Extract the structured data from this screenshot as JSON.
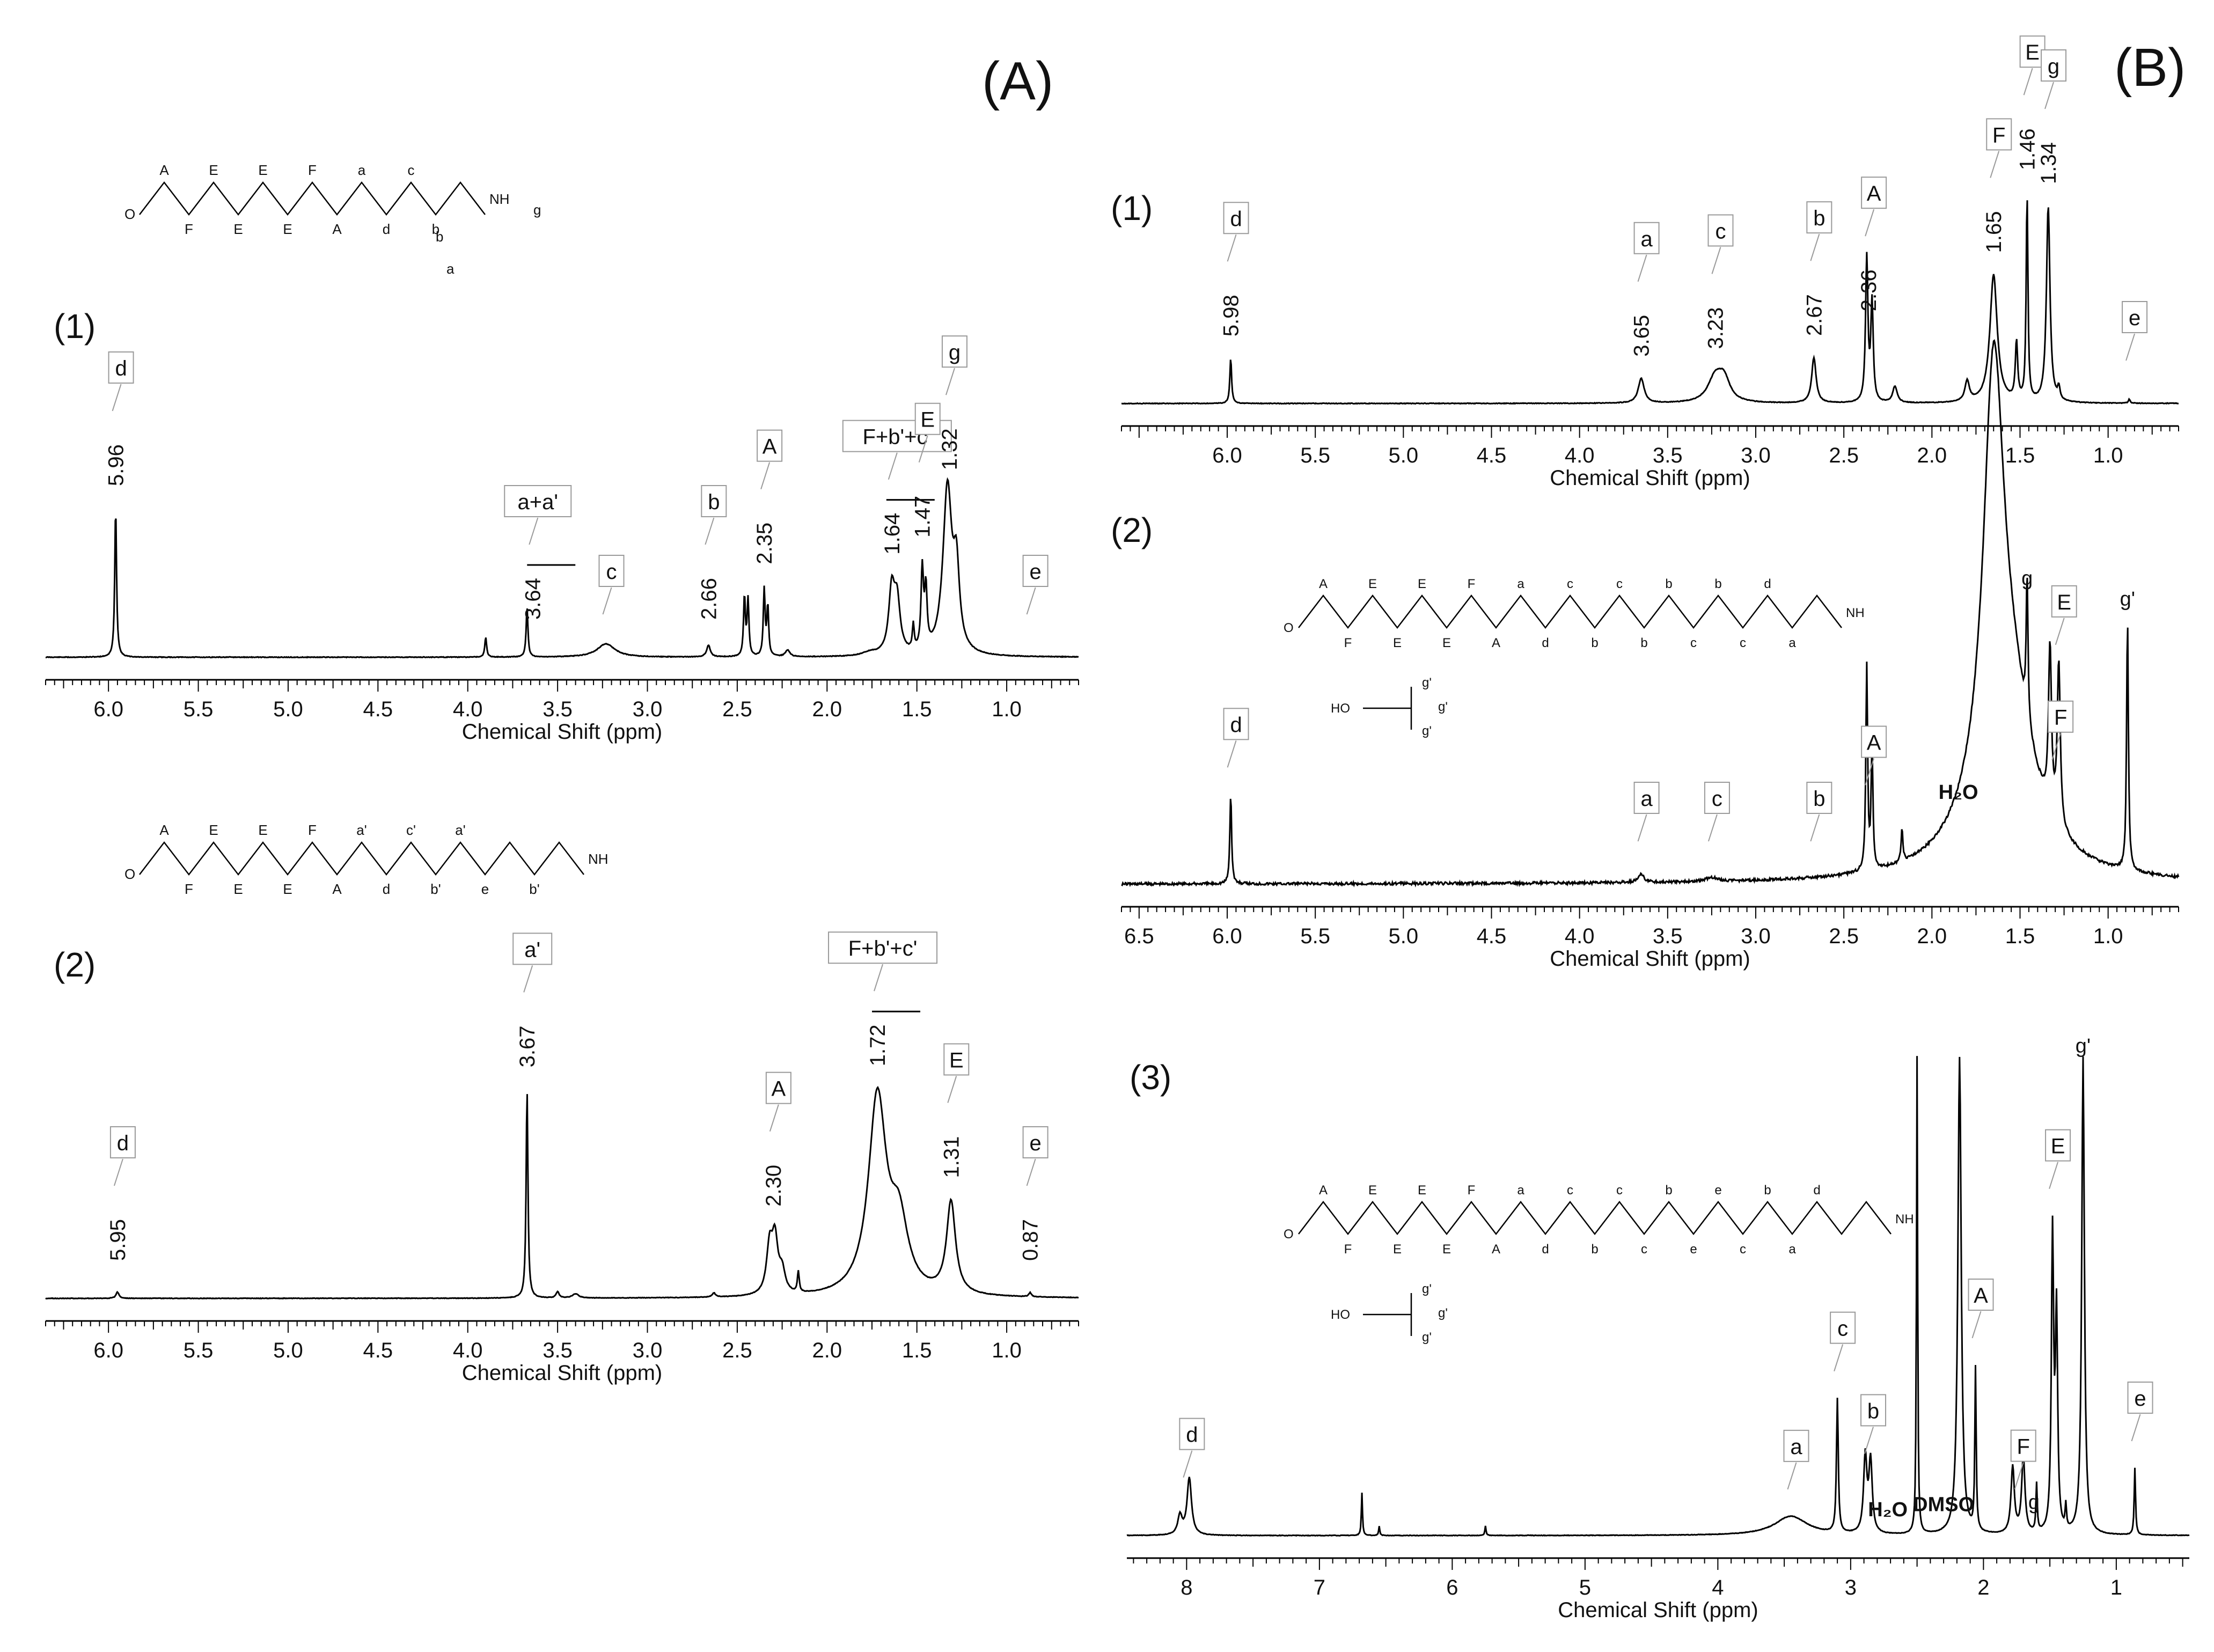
{
  "panels": {
    "A": "(A)",
    "B": "(B)"
  },
  "colors": {
    "ink": "#111111",
    "red": "#e8201a",
    "blue": "#2a4dd6",
    "brown": "#9a5a1a",
    "tag": "#9a9a9a"
  },
  "chart_data": [
    {
      "id": "A1",
      "type": "line",
      "label": "(1)",
      "xlabel": "Chemical Shift (ppm)",
      "xlim": [
        6.35,
        0.6
      ],
      "ticks": [
        "6.0",
        "5.5",
        "5.0",
        "4.5",
        "4.0",
        "3.5",
        "3.0",
        "2.5",
        "2.0",
        "1.5",
        "1.0"
      ],
      "tick_values": [
        6.0,
        5.5,
        5.0,
        4.5,
        4.0,
        3.5,
        3.0,
        2.5,
        2.0,
        1.5,
        1.0
      ],
      "peaks": [
        [
          5.96,
          0.9,
          0.006
        ],
        [
          3.9,
          0.12,
          0.006
        ],
        [
          3.67,
          0.3,
          0.006
        ],
        [
          3.23,
          0.08,
          0.06
        ],
        [
          2.66,
          0.07,
          0.012
        ],
        [
          2.46,
          0.36,
          0.006
        ],
        [
          2.44,
          0.34,
          0.006
        ],
        [
          2.35,
          0.4,
          0.006
        ],
        [
          2.33,
          0.3,
          0.006
        ],
        [
          2.22,
          0.04,
          0.015
        ],
        [
          1.76,
          0.02,
          0.05
        ],
        [
          1.64,
          0.38,
          0.02
        ],
        [
          1.61,
          0.3,
          0.02
        ],
        [
          1.52,
          0.15,
          0.006
        ],
        [
          1.47,
          0.48,
          0.008
        ],
        [
          1.45,
          0.35,
          0.008
        ],
        [
          1.33,
          1.0,
          0.03
        ],
        [
          1.28,
          0.45,
          0.02
        ]
      ],
      "labels": [
        {
          "ppm": 5.96,
          "text": "5.96",
          "tag": "d",
          "bar": false
        },
        {
          "ppm": 3.64,
          "text": "3.64",
          "tag": "a+a'",
          "bar": true
        },
        {
          "ppm": 3.23,
          "text": "",
          "tag": "c",
          "bar": false
        },
        {
          "ppm": 2.66,
          "text": "2.66",
          "tag": "b",
          "bar": false
        },
        {
          "ppm": 2.35,
          "text": "2.35",
          "tag": "A",
          "bar": false
        },
        {
          "ppm": 1.64,
          "text": "1.64",
          "tag": "F+b'+c'",
          "bar": true
        },
        {
          "ppm": 1.47,
          "text": "1.47",
          "tag": "E",
          "bar": false
        },
        {
          "ppm": 1.32,
          "text": "1.32",
          "tag": "g",
          "bar": false
        },
        {
          "ppm": 0.87,
          "text": "",
          "tag": "e",
          "bar": false
        }
      ],
      "formula": {
        "top": [
          "A",
          "E",
          "E",
          "F",
          "a",
          "c"
        ],
        "bottom": [
          "F",
          "E",
          "E",
          "A",
          "d",
          "b"
        ],
        "branch": [
          "b",
          "a"
        ],
        "tail": "g"
      }
    },
    {
      "id": "A2",
      "type": "line",
      "label": "(2)",
      "xlabel": "Chemical Shift (ppm)",
      "xlim": [
        6.35,
        0.6
      ],
      "ticks": [
        "6.0",
        "5.5",
        "5.0",
        "4.5",
        "4.0",
        "3.5",
        "3.0",
        "2.5",
        "2.0",
        "1.5",
        "1.0"
      ],
      "tick_values": [
        6.0,
        5.5,
        5.0,
        4.5,
        4.0,
        3.5,
        3.0,
        2.5,
        2.0,
        1.5,
        1.0
      ],
      "peaks": [
        [
          5.95,
          0.03,
          0.01
        ],
        [
          3.67,
          1.0,
          0.006
        ],
        [
          3.5,
          0.03,
          0.01
        ],
        [
          3.4,
          0.02,
          0.02
        ],
        [
          2.63,
          0.02,
          0.01
        ],
        [
          2.32,
          0.22,
          0.02
        ],
        [
          2.29,
          0.25,
          0.02
        ],
        [
          2.25,
          0.1,
          0.02
        ],
        [
          2.16,
          0.1,
          0.006
        ],
        [
          1.72,
          0.94,
          0.06
        ],
        [
          1.6,
          0.32,
          0.06
        ],
        [
          1.31,
          0.44,
          0.03
        ],
        [
          0.87,
          0.02,
          0.008
        ]
      ],
      "labels": [
        {
          "ppm": 5.95,
          "text": "5.95",
          "tag": "d",
          "bar": false
        },
        {
          "ppm": 3.67,
          "text": "3.67",
          "tag": "a'",
          "bar": false
        },
        {
          "ppm": 2.3,
          "text": "2.30",
          "tag": "A",
          "bar": false
        },
        {
          "ppm": 1.72,
          "text": "1.72",
          "tag": "F+b'+c'",
          "bar": true
        },
        {
          "ppm": 1.31,
          "text": "1.31",
          "tag": "E",
          "bar": false
        },
        {
          "ppm": 0.87,
          "text": "0.87",
          "tag": "e",
          "bar": false
        }
      ],
      "formula": {
        "top": [
          "A",
          "E",
          "E",
          "F",
          "a'",
          "c'",
          "a'"
        ],
        "bottom": [
          "F",
          "E",
          "E",
          "A",
          "d",
          "b'",
          "e",
          "b'"
        ]
      }
    },
    {
      "id": "B1",
      "type": "line",
      "label": "(1)",
      "xlabel": "Chemical Shift (ppm)",
      "xlim": [
        6.6,
        0.6
      ],
      "ticks": [
        "6.0",
        "5.5",
        "5.0",
        "4.5",
        "4.0",
        "3.5",
        "3.0",
        "2.5",
        "2.0",
        "1.5",
        "1.0"
      ],
      "tick_values": [
        6.0,
        5.5,
        5.0,
        4.5,
        4.0,
        3.5,
        3.0,
        2.5,
        2.0,
        1.5,
        1.0
      ],
      "peaks": [
        [
          5.98,
          0.22,
          0.006
        ],
        [
          3.65,
          0.12,
          0.02
        ],
        [
          3.23,
          0.12,
          0.05
        ],
        [
          3.18,
          0.1,
          0.04
        ],
        [
          2.67,
          0.22,
          0.015
        ],
        [
          2.37,
          0.7,
          0.008
        ],
        [
          2.34,
          0.48,
          0.008
        ],
        [
          2.21,
          0.08,
          0.015
        ],
        [
          1.8,
          0.1,
          0.015
        ],
        [
          1.65,
          0.62,
          0.025
        ],
        [
          1.52,
          0.28,
          0.008
        ],
        [
          1.46,
          1.0,
          0.006
        ],
        [
          1.34,
          0.95,
          0.012
        ],
        [
          1.28,
          0.06,
          0.008
        ],
        [
          0.88,
          0.02,
          0.006
        ]
      ],
      "labels": [
        {
          "ppm": 5.98,
          "text": "5.98",
          "tag": "d",
          "bar": false
        },
        {
          "ppm": 3.65,
          "text": "3.65",
          "tag": "a",
          "bar": false
        },
        {
          "ppm": 3.23,
          "text": "3.23",
          "tag": "c",
          "bar": false
        },
        {
          "ppm": 2.67,
          "text": "2.67",
          "tag": "b",
          "bar": false
        },
        {
          "ppm": 2.36,
          "text": "2.36",
          "tag": "A",
          "bar": false
        },
        {
          "ppm": 1.65,
          "text": "1.65",
          "tag": "F",
          "bar": false
        },
        {
          "ppm": 1.46,
          "text": "1.46",
          "tag": "E",
          "bar": false
        },
        {
          "ppm": 1.34,
          "text": "1.34",
          "tag": "g",
          "bar": false
        },
        {
          "ppm": 0.88,
          "text": "",
          "tag": "e",
          "bar": false
        }
      ]
    },
    {
      "id": "B2",
      "type": "line",
      "label": "(2)",
      "xlabel": "Chemical Shift (ppm)",
      "xlim": [
        6.6,
        0.6
      ],
      "ticks": [
        "6.5",
        "6.0",
        "5.5",
        "5.0",
        "4.5",
        "4.0",
        "3.5",
        "3.0",
        "2.5",
        "2.0",
        "1.5",
        "1.0"
      ],
      "tick_values": [
        6.5,
        6.0,
        5.5,
        5.0,
        4.5,
        4.0,
        3.5,
        3.0,
        2.5,
        2.0,
        1.5,
        1.0
      ],
      "peaks": [
        [
          5.98,
          0.22,
          0.006
        ],
        [
          3.65,
          0.02,
          0.02
        ],
        [
          3.25,
          0.01,
          0.04
        ],
        [
          2.37,
          0.5,
          0.006
        ],
        [
          2.34,
          0.3,
          0.006
        ],
        [
          2.17,
          0.08,
          0.006
        ],
        [
          1.65,
          1.0,
          0.07
        ],
        [
          1.55,
          0.3,
          0.15
        ],
        [
          1.46,
          0.35,
          0.006
        ],
        [
          1.33,
          0.4,
          0.01
        ],
        [
          1.28,
          0.4,
          0.01
        ],
        [
          0.89,
          0.62,
          0.006
        ]
      ],
      "labels": [
        {
          "ppm": 5.98,
          "text": "",
          "tag": "d",
          "bar": false
        },
        {
          "ppm": 3.65,
          "text": "",
          "tag": "a",
          "bar": false
        },
        {
          "ppm": 3.25,
          "text": "",
          "tag": "c",
          "bar": false
        },
        {
          "ppm": 2.67,
          "text": "",
          "tag": "b",
          "bar": false
        },
        {
          "ppm": 2.36,
          "text": "",
          "tag": "A",
          "bar": false
        },
        {
          "ppm": 1.3,
          "text": "",
          "tag": "F",
          "bar": false
        },
        {
          "ppm": 1.28,
          "text": "",
          "tag": "E",
          "bar": false
        }
      ],
      "extra": [
        {
          "ppm": 1.85,
          "text": "H₂O"
        },
        {
          "ppm": 1.46,
          "text": "g"
        },
        {
          "ppm": 0.89,
          "text": "g'"
        }
      ],
      "formula": {
        "top": [
          "A",
          "E",
          "E",
          "F",
          "a",
          "c",
          "c",
          "b",
          "b",
          "d"
        ],
        "bottom": [
          "F",
          "E",
          "E",
          "A",
          "d",
          "b",
          "b",
          "c",
          "c",
          "a"
        ],
        "boc": [
          "g'",
          "g'",
          "g'"
        ]
      }
    },
    {
      "id": "B3",
      "type": "line",
      "label": "(3)",
      "xlabel": "Chemical Shift (ppm)",
      "xlim": [
        8.45,
        0.45
      ],
      "ticks": [
        "8",
        "7",
        "6",
        "5",
        "4",
        "3",
        "2",
        "1"
      ],
      "tick_values": [
        8,
        7,
        6,
        5,
        4,
        3,
        2,
        1
      ],
      "peaks": [
        [
          7.98,
          0.12,
          0.02
        ],
        [
          8.05,
          0.04,
          0.02
        ],
        [
          6.68,
          0.09,
          0.005
        ],
        [
          6.55,
          0.02,
          0.005
        ],
        [
          5.75,
          0.02,
          0.005
        ],
        [
          3.45,
          0.04,
          0.15
        ],
        [
          3.1,
          0.28,
          0.008
        ],
        [
          2.89,
          0.16,
          0.015
        ],
        [
          2.85,
          0.15,
          0.015
        ],
        [
          2.5,
          1.0,
          0.005
        ],
        [
          2.18,
          1.0,
          0.015
        ],
        [
          2.06,
          0.34,
          0.006
        ],
        [
          1.78,
          0.14,
          0.015
        ],
        [
          1.7,
          0.16,
          0.015
        ],
        [
          1.6,
          0.1,
          0.006
        ],
        [
          1.48,
          0.62,
          0.01
        ],
        [
          1.45,
          0.45,
          0.01
        ],
        [
          1.38,
          0.05,
          0.006
        ],
        [
          1.25,
          1.0,
          0.012
        ],
        [
          0.86,
          0.14,
          0.006
        ]
      ],
      "labels": [
        {
          "ppm": 8.0,
          "text": "",
          "tag": "d",
          "bar": false
        },
        {
          "ppm": 3.45,
          "text": "",
          "tag": "a",
          "bar": false
        },
        {
          "ppm": 3.1,
          "text": "",
          "tag": "c",
          "bar": false
        },
        {
          "ppm": 2.87,
          "text": "",
          "tag": "b",
          "bar": false
        },
        {
          "ppm": 2.06,
          "text": "",
          "tag": "A",
          "bar": false
        },
        {
          "ppm": 1.74,
          "text": "",
          "tag": "F",
          "bar": false
        },
        {
          "ppm": 1.48,
          "text": "",
          "tag": "E",
          "bar": false
        },
        {
          "ppm": 0.86,
          "text": "",
          "tag": "e",
          "bar": false
        }
      ],
      "extra": [
        {
          "ppm": 2.72,
          "text": "H₂O"
        },
        {
          "ppm": 2.3,
          "text": "DMSO"
        },
        {
          "ppm": 1.62,
          "text": "g"
        },
        {
          "ppm": 1.25,
          "text": "g'"
        }
      ],
      "formula": {
        "top": [
          "A",
          "E",
          "E",
          "F",
          "a",
          "c",
          "c",
          "b",
          "e",
          "b",
          "d"
        ],
        "bottom": [
          "F",
          "E",
          "E",
          "A",
          "d",
          "b",
          "c",
          "e",
          "c",
          "a"
        ],
        "boc": [
          "g'",
          "g'",
          "g'"
        ]
      }
    }
  ]
}
